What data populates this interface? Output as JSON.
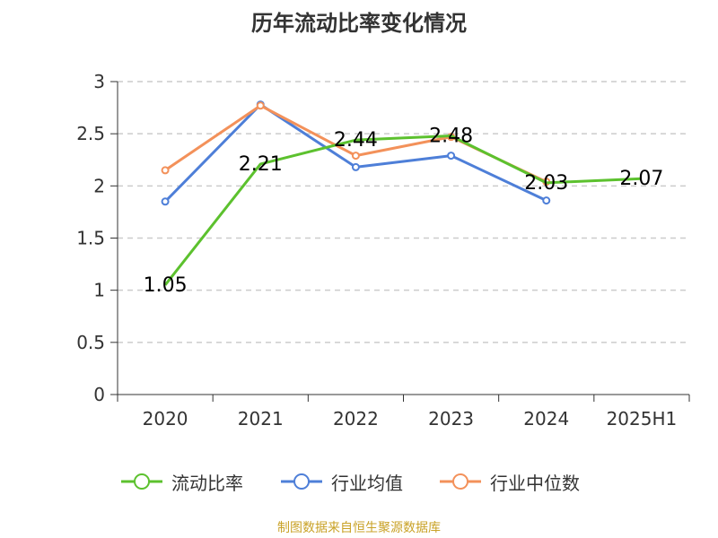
{
  "title": "历年流动比率变化情况",
  "source": "制图数据来自恒生聚源数据库",
  "chart_data": {
    "type": "line",
    "categories": [
      "2020",
      "2021",
      "2022",
      "2023",
      "2024",
      "2025H1"
    ],
    "ylim": [
      0,
      3
    ],
    "yticks": [
      "0",
      "0.5",
      "1",
      "1.5",
      "2",
      "2.5",
      "3"
    ],
    "grid": true,
    "legend_position": "bottom",
    "series": [
      {
        "name": "流动比率",
        "color": "#5cc12e",
        "values": [
          1.05,
          2.21,
          2.44,
          2.48,
          2.03,
          2.07
        ],
        "labels": [
          "1.05",
          "2.21",
          "2.44",
          "2.48",
          "2.03",
          "2.07"
        ]
      },
      {
        "name": "行业均值",
        "color": "#4e7fd8",
        "values": [
          1.85,
          2.78,
          2.18,
          2.29,
          1.86,
          null
        ]
      },
      {
        "name": "行业中位数",
        "color": "#f3915a",
        "values": [
          2.15,
          2.77,
          2.29,
          2.47,
          2.04,
          null
        ]
      }
    ]
  }
}
